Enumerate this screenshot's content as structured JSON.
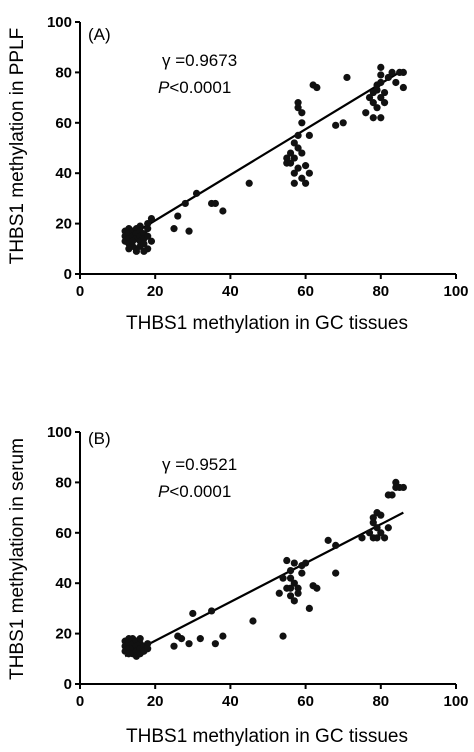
{
  "chart_data": [
    {
      "type": "scatter",
      "panel_label": "(A)",
      "xlabel": "THBS1 methylation in GC tissues",
      "ylabel": "THBS1 methylation in PPLF",
      "xlim": [
        0,
        100
      ],
      "ylim": [
        0,
        100
      ],
      "xticks": [
        0,
        20,
        40,
        60,
        80,
        100
      ],
      "yticks": [
        0,
        20,
        40,
        60,
        80,
        100
      ],
      "r_text": "γ =0.9673",
      "p_label": "P",
      "p_value": "<0.0001",
      "fit_line": [
        [
          12,
          14
        ],
        [
          86,
          81
        ]
      ],
      "points": [
        [
          12,
          17
        ],
        [
          12,
          15
        ],
        [
          12,
          13
        ],
        [
          13,
          18
        ],
        [
          13,
          16
        ],
        [
          13,
          14
        ],
        [
          13,
          12
        ],
        [
          14,
          17
        ],
        [
          14,
          15
        ],
        [
          14,
          11
        ],
        [
          15,
          18
        ],
        [
          15,
          16
        ],
        [
          15,
          14
        ],
        [
          15,
          10
        ],
        [
          16,
          19
        ],
        [
          16,
          17
        ],
        [
          16,
          15
        ],
        [
          16,
          13
        ],
        [
          16,
          11
        ],
        [
          17,
          16
        ],
        [
          17,
          14
        ],
        [
          17,
          12
        ],
        [
          18,
          20
        ],
        [
          18,
          18
        ],
        [
          18,
          15
        ],
        [
          19,
          22
        ],
        [
          19,
          13
        ],
        [
          18,
          10
        ],
        [
          17,
          9
        ],
        [
          15,
          9
        ],
        [
          14,
          13
        ],
        [
          13,
          10
        ],
        [
          25,
          18
        ],
        [
          26,
          23
        ],
        [
          28,
          28
        ],
        [
          29,
          17
        ],
        [
          31,
          32
        ],
        [
          35,
          28
        ],
        [
          36,
          28
        ],
        [
          38,
          25
        ],
        [
          45,
          36
        ],
        [
          55,
          46
        ],
        [
          55,
          44
        ],
        [
          56,
          48
        ],
        [
          56,
          44
        ],
        [
          57,
          52
        ],
        [
          57,
          46
        ],
        [
          57,
          40
        ],
        [
          57,
          36
        ],
        [
          58,
          50
        ],
        [
          58,
          55
        ],
        [
          58,
          42
        ],
        [
          59,
          38
        ],
        [
          59,
          48
        ],
        [
          59,
          60
        ],
        [
          59,
          64
        ],
        [
          60,
          43
        ],
        [
          60,
          36
        ],
        [
          61,
          55
        ],
        [
          61,
          40
        ],
        [
          62,
          75
        ],
        [
          63,
          74
        ],
        [
          58,
          66
        ],
        [
          58,
          68
        ],
        [
          68,
          59
        ],
        [
          70,
          60
        ],
        [
          71,
          78
        ],
        [
          76,
          64
        ],
        [
          77,
          70
        ],
        [
          78,
          72
        ],
        [
          78,
          68
        ],
        [
          78,
          62
        ],
        [
          79,
          75
        ],
        [
          79,
          73
        ],
        [
          79,
          66
        ],
        [
          80,
          82
        ],
        [
          80,
          79
        ],
        [
          80,
          76
        ],
        [
          80,
          70
        ],
        [
          81,
          72
        ],
        [
          81,
          68
        ],
        [
          82,
          78
        ],
        [
          83,
          80
        ],
        [
          84,
          76
        ],
        [
          85,
          80
        ],
        [
          86,
          80
        ],
        [
          86,
          74
        ],
        [
          80,
          62
        ]
      ]
    },
    {
      "type": "scatter",
      "panel_label": "(B)",
      "xlabel": "THBS1 methylation in GC tissues",
      "ylabel": "THBS1 methylation in serum",
      "xlim": [
        0,
        100
      ],
      "ylim": [
        0,
        100
      ],
      "xticks": [
        0,
        20,
        40,
        60,
        80,
        100
      ],
      "yticks": [
        0,
        20,
        40,
        60,
        80,
        100
      ],
      "r_text": "γ =0.9521",
      "p_label": "P",
      "p_value": "<0.0001",
      "fit_line": [
        [
          12,
          11
        ],
        [
          86,
          68
        ]
      ],
      "points": [
        [
          12,
          17
        ],
        [
          12,
          15
        ],
        [
          12,
          13
        ],
        [
          13,
          16
        ],
        [
          13,
          14
        ],
        [
          13,
          12
        ],
        [
          14,
          18
        ],
        [
          14,
          16
        ],
        [
          14,
          14
        ],
        [
          14,
          12
        ],
        [
          15,
          17
        ],
        [
          15,
          15
        ],
        [
          15,
          13
        ],
        [
          15,
          11
        ],
        [
          16,
          16
        ],
        [
          16,
          14
        ],
        [
          16,
          12
        ],
        [
          17,
          15
        ],
        [
          17,
          13
        ],
        [
          18,
          16
        ],
        [
          18,
          14
        ],
        [
          13,
          18
        ],
        [
          16,
          18
        ],
        [
          25,
          15
        ],
        [
          26,
          19
        ],
        [
          27,
          18
        ],
        [
          29,
          16
        ],
        [
          30,
          28
        ],
        [
          32,
          18
        ],
        [
          35,
          29
        ],
        [
          36,
          16
        ],
        [
          38,
          19
        ],
        [
          46,
          25
        ],
        [
          53,
          36
        ],
        [
          54,
          42
        ],
        [
          54,
          19
        ],
        [
          55,
          38
        ],
        [
          55,
          49
        ],
        [
          56,
          45
        ],
        [
          56,
          42
        ],
        [
          56,
          38
        ],
        [
          56,
          35
        ],
        [
          57,
          48
        ],
        [
          57,
          40
        ],
        [
          57,
          33
        ],
        [
          58,
          38
        ],
        [
          58,
          36
        ],
        [
          59,
          44
        ],
        [
          59,
          47
        ],
        [
          60,
          48
        ],
        [
          61,
          30
        ],
        [
          62,
          39
        ],
        [
          63,
          38
        ],
        [
          66,
          57
        ],
        [
          68,
          55
        ],
        [
          68,
          44
        ],
        [
          75,
          58
        ],
        [
          77,
          60
        ],
        [
          78,
          66
        ],
        [
          78,
          64
        ],
        [
          78,
          58
        ],
        [
          79,
          68
        ],
        [
          79,
          62
        ],
        [
          80,
          67
        ],
        [
          80,
          60
        ],
        [
          81,
          58
        ],
        [
          82,
          62
        ],
        [
          82,
          75
        ],
        [
          83,
          75
        ],
        [
          84,
          78
        ],
        [
          84,
          80
        ],
        [
          85,
          78
        ],
        [
          86,
          78
        ],
        [
          79,
          58
        ]
      ]
    }
  ]
}
